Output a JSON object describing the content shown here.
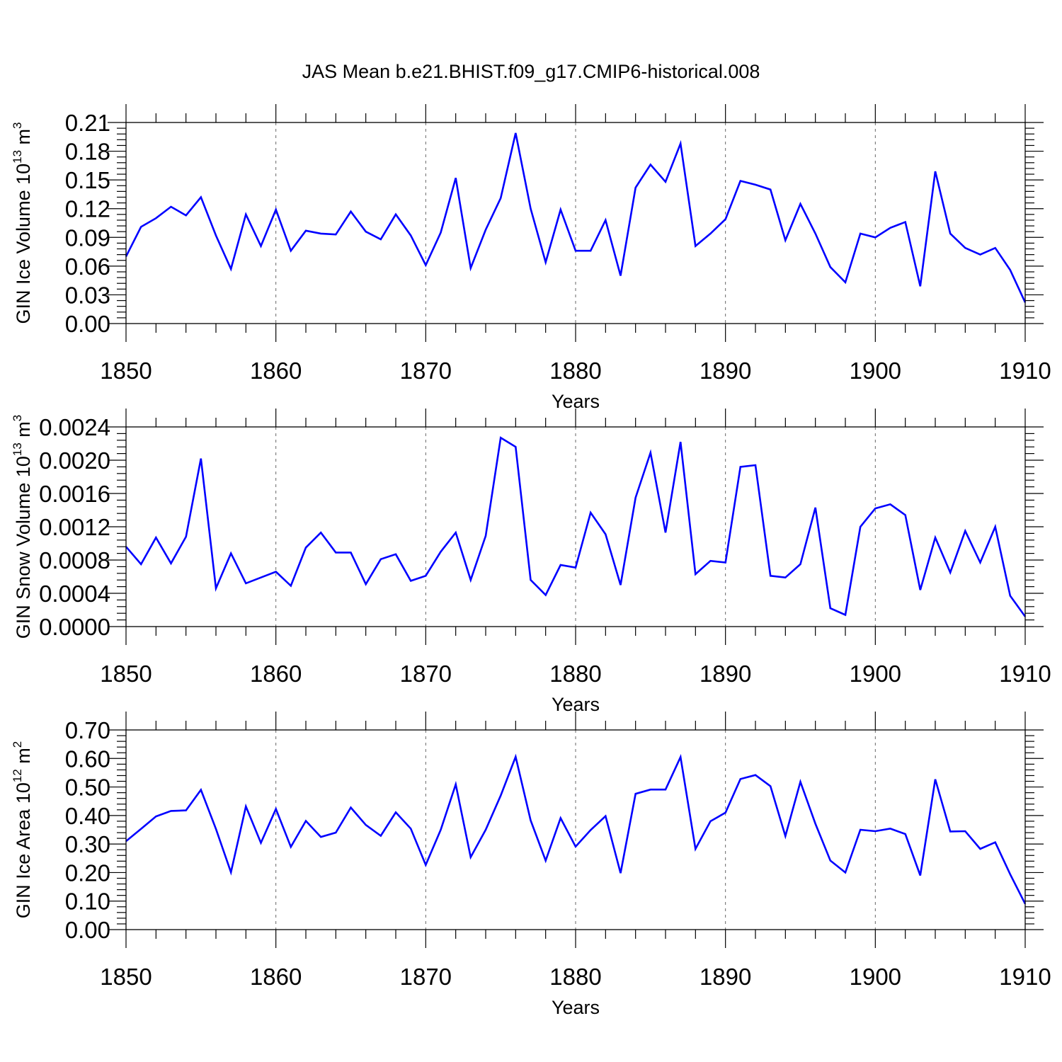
{
  "figure": {
    "title": "JAS Mean b.e21.BHIST.f09_g17.CMIP6-historical.008"
  },
  "colors": {
    "series": "#0000ff",
    "axes": "#000000",
    "grid": "#666666"
  },
  "chart_data": [
    {
      "type": "line",
      "name": "ice-volume",
      "ylabel_main": "GIN Ice Volume 10",
      "ylabel_sup": "13",
      "ylabel_unit": " m",
      "ylabel_unit_sup": "3",
      "xlabel": "Years",
      "xlim": [
        1850,
        1910
      ],
      "ylim": [
        0,
        0.21
      ],
      "yticks": [
        "0.00",
        "0.03",
        "0.06",
        "0.09",
        "0.12",
        "0.15",
        "0.18",
        "0.21"
      ],
      "ytick_values": [
        0,
        0.03,
        0.06,
        0.09,
        0.12,
        0.15,
        0.18,
        0.21
      ],
      "xticks": [
        "1850",
        "1860",
        "1870",
        "1880",
        "1890",
        "1900",
        "1910"
      ],
      "grid": "vertical-dashed",
      "x": [
        1850,
        1851,
        1852,
        1853,
        1854,
        1855,
        1856,
        1857,
        1858,
        1859,
        1860,
        1861,
        1862,
        1863,
        1864,
        1865,
        1866,
        1867,
        1868,
        1869,
        1870,
        1871,
        1872,
        1873,
        1874,
        1875,
        1876,
        1877,
        1878,
        1879,
        1880,
        1881,
        1882,
        1883,
        1884,
        1885,
        1886,
        1887,
        1888,
        1889,
        1890,
        1891,
        1892,
        1893,
        1894,
        1895,
        1896,
        1897,
        1898,
        1899,
        1900,
        1901,
        1902,
        1903,
        1904,
        1905,
        1906,
        1907,
        1908,
        1909,
        1910
      ],
      "values": [
        0.07,
        0.101,
        0.11,
        0.122,
        0.113,
        0.132,
        0.092,
        0.057,
        0.114,
        0.081,
        0.119,
        0.076,
        0.097,
        0.094,
        0.093,
        0.117,
        0.096,
        0.088,
        0.114,
        0.092,
        0.061,
        0.095,
        0.152,
        0.058,
        0.098,
        0.131,
        0.199,
        0.12,
        0.064,
        0.119,
        0.076,
        0.076,
        0.108,
        0.05,
        0.142,
        0.166,
        0.148,
        0.188,
        0.081,
        0.094,
        0.109,
        0.149,
        0.145,
        0.14,
        0.087,
        0.125,
        0.094,
        0.059,
        0.043,
        0.094,
        0.09,
        0.1,
        0.106,
        0.039,
        0.159,
        0.094,
        0.079,
        0.072,
        0.079,
        0.056,
        0.022
      ]
    },
    {
      "type": "line",
      "name": "snow-volume",
      "ylabel_main": "GIN Snow Volume 10",
      "ylabel_sup": "13",
      "ylabel_unit": " m",
      "ylabel_unit_sup": "3",
      "xlabel": "Years",
      "xlim": [
        1850,
        1910
      ],
      "ylim": [
        0,
        0.0024
      ],
      "yticks": [
        "0.0000",
        "0.0004",
        "0.0008",
        "0.0012",
        "0.0016",
        "0.0020",
        "0.0024"
      ],
      "ytick_values": [
        0,
        0.0004,
        0.0008,
        0.0012,
        0.0016,
        0.002,
        0.0024
      ],
      "xticks": [
        "1850",
        "1860",
        "1870",
        "1880",
        "1890",
        "1900",
        "1910"
      ],
      "grid": "vertical-dashed",
      "x": [
        1850,
        1851,
        1852,
        1853,
        1854,
        1855,
        1856,
        1857,
        1858,
        1859,
        1860,
        1861,
        1862,
        1863,
        1864,
        1865,
        1866,
        1867,
        1868,
        1869,
        1870,
        1871,
        1872,
        1873,
        1874,
        1875,
        1876,
        1877,
        1878,
        1879,
        1880,
        1881,
        1882,
        1883,
        1884,
        1885,
        1886,
        1887,
        1888,
        1889,
        1890,
        1891,
        1892,
        1893,
        1894,
        1895,
        1896,
        1897,
        1898,
        1899,
        1900,
        1901,
        1902,
        1903,
        1904,
        1905,
        1906,
        1907,
        1908,
        1909,
        1910
      ],
      "values": [
        0.00096,
        0.00075,
        0.00107,
        0.00076,
        0.00108,
        0.00202,
        0.00046,
        0.00088,
        0.00052,
        0.00059,
        0.00066,
        0.00049,
        0.00095,
        0.00113,
        0.00089,
        0.00089,
        0.00051,
        0.00081,
        0.00087,
        0.00055,
        0.00061,
        0.0009,
        0.00113,
        0.00056,
        0.00109,
        0.00227,
        0.00216,
        0.00056,
        0.00038,
        0.00074,
        0.00071,
        0.00137,
        0.00111,
        0.0005,
        0.00155,
        0.00209,
        0.00113,
        0.00222,
        0.00063,
        0.00079,
        0.00077,
        0.00192,
        0.00194,
        0.00061,
        0.00059,
        0.00075,
        0.00143,
        0.00022,
        0.00014,
        0.0012,
        0.00142,
        0.00147,
        0.00134,
        0.00044,
        0.00107,
        0.00065,
        0.00115,
        0.00077,
        0.0012,
        0.00037,
        0.00012
      ]
    },
    {
      "type": "line",
      "name": "ice-area",
      "ylabel_main": "GIN Ice Area 10",
      "ylabel_sup": "12",
      "ylabel_unit": " m",
      "ylabel_unit_sup": "2",
      "xlabel": "Years",
      "xlim": [
        1850,
        1910
      ],
      "ylim": [
        0,
        0.7
      ],
      "yticks": [
        "0.00",
        "0.10",
        "0.20",
        "0.30",
        "0.40",
        "0.50",
        "0.60",
        "0.70"
      ],
      "ytick_values": [
        0,
        0.1,
        0.2,
        0.3,
        0.4,
        0.5,
        0.6,
        0.7
      ],
      "xticks": [
        "1850",
        "1860",
        "1870",
        "1880",
        "1890",
        "1900",
        "1910"
      ],
      "grid": "vertical-dashed",
      "x": [
        1850,
        1851,
        1852,
        1853,
        1854,
        1855,
        1856,
        1857,
        1858,
        1859,
        1860,
        1861,
        1862,
        1863,
        1864,
        1865,
        1866,
        1867,
        1868,
        1869,
        1870,
        1871,
        1872,
        1873,
        1874,
        1875,
        1876,
        1877,
        1878,
        1879,
        1880,
        1881,
        1882,
        1883,
        1884,
        1885,
        1886,
        1887,
        1888,
        1889,
        1890,
        1891,
        1892,
        1893,
        1894,
        1895,
        1896,
        1897,
        1898,
        1899,
        1900,
        1901,
        1902,
        1903,
        1904,
        1905,
        1906,
        1907,
        1908,
        1909,
        1910
      ],
      "values": [
        0.31,
        0.353,
        0.397,
        0.416,
        0.418,
        0.49,
        0.353,
        0.201,
        0.432,
        0.304,
        0.423,
        0.29,
        0.381,
        0.325,
        0.34,
        0.428,
        0.367,
        0.329,
        0.411,
        0.354,
        0.227,
        0.35,
        0.509,
        0.254,
        0.35,
        0.47,
        0.606,
        0.383,
        0.242,
        0.391,
        0.291,
        0.349,
        0.398,
        0.198,
        0.476,
        0.491,
        0.491,
        0.605,
        0.283,
        0.38,
        0.41,
        0.528,
        0.542,
        0.503,
        0.328,
        0.518,
        0.371,
        0.242,
        0.2,
        0.35,
        0.345,
        0.354,
        0.335,
        0.19,
        0.527,
        0.344,
        0.345,
        0.283,
        0.306,
        0.194,
        0.09
      ]
    }
  ]
}
